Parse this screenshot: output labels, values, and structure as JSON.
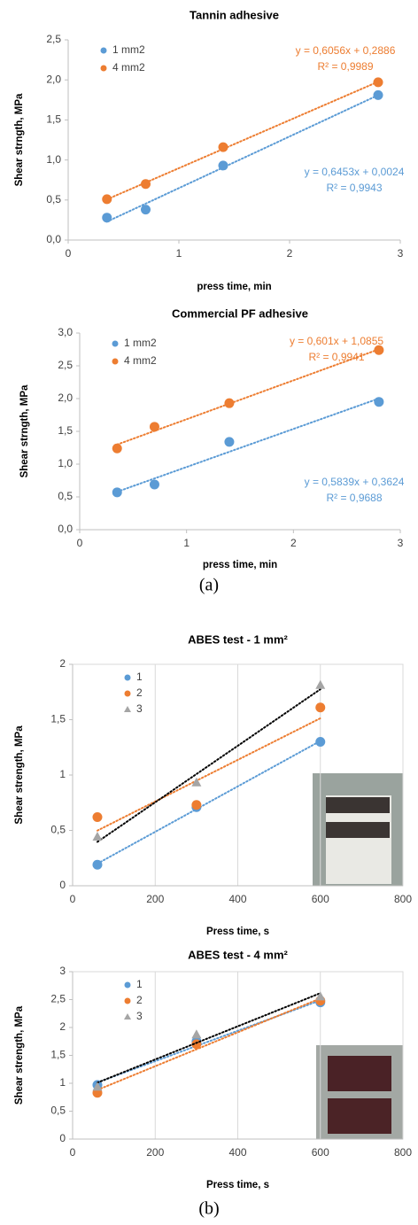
{
  "chart_data": [
    {
      "type": "scatter",
      "title": "Tannin adhesive",
      "x_label": "press time, min",
      "y_label": "Shear strngth, MPa",
      "x": [
        0.35,
        0.7,
        1.4,
        2.8
      ],
      "xlim": [
        0,
        3
      ],
      "xticks": [
        0,
        1,
        2,
        3
      ],
      "ylim": [
        0,
        2.5
      ],
      "yticks": [
        {
          "value": 0,
          "label": "0,0"
        },
        {
          "value": 0.5,
          "label": "0,5"
        },
        {
          "value": 1,
          "label": "1,0"
        },
        {
          "value": 1.5,
          "label": "1,5"
        },
        {
          "value": 2,
          "label": "2,0"
        },
        {
          "value": 2.5,
          "label": "2,5"
        }
      ],
      "grid": false,
      "legend": "upper left",
      "series": [
        {
          "name": "1 mm2",
          "color": "#5b9bd5",
          "marker": "circle",
          "trendline_color": "#5b9bd5",
          "values": [
            0.28,
            0.38,
            0.93,
            1.81
          ],
          "trendline_label": [
            "y = 0,6453x + 0,0024",
            "R² = 0,9943"
          ]
        },
        {
          "name": "4 mm2",
          "color": "#ed7d31",
          "marker": "circle",
          "trendline_color": "#ed7d31",
          "values": [
            0.51,
            0.7,
            1.16,
            1.97
          ],
          "trendline_label": [
            "y = 0,6056x + 0,2886",
            "R² = 0,9989"
          ]
        }
      ]
    },
    {
      "type": "scatter",
      "title": "Commercial PF adhesive",
      "x_label": "press time, min",
      "y_label": "Shear strngth, MPa",
      "x": [
        0.35,
        0.7,
        1.4,
        2.8
      ],
      "xlim": [
        0,
        3
      ],
      "xticks": [
        0,
        1,
        2,
        3
      ],
      "ylim": [
        0,
        3
      ],
      "yticks": [
        {
          "value": 0,
          "label": "0,0"
        },
        {
          "value": 0.5,
          "label": "0,5"
        },
        {
          "value": 1,
          "label": "1,0"
        },
        {
          "value": 1.5,
          "label": "1,5"
        },
        {
          "value": 2,
          "label": "2,0"
        },
        {
          "value": 2.5,
          "label": "2,5"
        },
        {
          "value": 3,
          "label": "3,0"
        }
      ],
      "grid": false,
      "legend": "upper left",
      "series": [
        {
          "name": "1 mm2",
          "color": "#5b9bd5",
          "marker": "circle",
          "trendline_color": "#5b9bd5",
          "values": [
            0.57,
            0.69,
            1.34,
            1.95
          ],
          "trendline_label": [
            "y = 0,5839x + 0,3624",
            "R² = 0,9688"
          ]
        },
        {
          "name": "4 mm2",
          "color": "#ed7d31",
          "marker": "circle",
          "trendline_color": "#ed7d31",
          "values": [
            1.24,
            1.57,
            1.93,
            2.74
          ],
          "trendline_label": [
            "y = 0,601x + 1,0855",
            "R² = 0,9941"
          ]
        }
      ]
    },
    {
      "type": "scatter",
      "title": "ABES test - 1 mm²",
      "x_label": "Press time, s",
      "y_label": "Shear strength, MPa",
      "x": [
        60,
        300,
        600
      ],
      "xlim": [
        0,
        800
      ],
      "xticks": [
        0,
        200,
        400,
        600,
        800
      ],
      "ylim": [
        0,
        2
      ],
      "yticks": [
        0,
        {
          "value": 0.5,
          "label": "0,5"
        },
        1,
        {
          "value": 1.5,
          "label": "1,5"
        },
        2
      ],
      "grid": "x",
      "legend": "upper left",
      "series": [
        {
          "name": "1",
          "color": "#5b9bd5",
          "marker": "circle",
          "trendline_color": "#5b9bd5",
          "values": [
            0.19,
            0.71,
            1.3
          ]
        },
        {
          "name": "2",
          "color": "#ed7d31",
          "marker": "circle",
          "trendline_color": "#ed7d31",
          "values": [
            0.62,
            0.73,
            1.61
          ]
        },
        {
          "name": "3",
          "color": "#a5a5a5",
          "marker": "triangle",
          "trendline_color": "#000000",
          "values": [
            0.44,
            0.93,
            1.81
          ]
        }
      ]
    },
    {
      "type": "scatter",
      "title": "ABES test - 4 mm²",
      "x_label": "Press time, s",
      "y_label": "Shear strength, MPa",
      "x": [
        60,
        300,
        600
      ],
      "xlim": [
        0,
        800
      ],
      "xticks": [
        0,
        200,
        400,
        600,
        800
      ],
      "ylim": [
        0,
        3
      ],
      "yticks": [
        0,
        {
          "value": 0.5,
          "label": "0,5"
        },
        1,
        {
          "value": 1.5,
          "label": "1,5"
        },
        2,
        {
          "value": 2.5,
          "label": "2,5"
        },
        3
      ],
      "grid": "x",
      "legend": "upper left",
      "series": [
        {
          "name": "1",
          "color": "#5b9bd5",
          "marker": "circle",
          "trendline_color": "#5b9bd5",
          "values": [
            0.97,
            1.75,
            2.45
          ]
        },
        {
          "name": "2",
          "color": "#ed7d31",
          "marker": "circle",
          "trendline_color": "#ed7d31",
          "values": [
            0.83,
            1.7,
            2.48
          ]
        },
        {
          "name": "3",
          "color": "#a5a5a5",
          "marker": "triangle",
          "trendline_color": "#000000",
          "values": [
            0.93,
            1.87,
            2.55
          ]
        }
      ]
    }
  ],
  "panel_labels": [
    "(a)",
    "(b)"
  ]
}
